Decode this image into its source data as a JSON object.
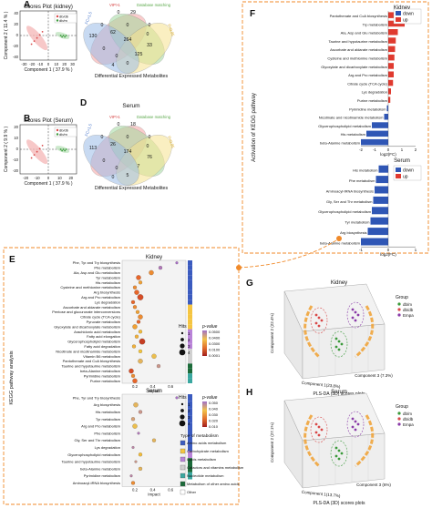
{
  "panels": {
    "A": {
      "letter": "A",
      "title": "Scores Plot (kidney)",
      "xlabel": "Component 1 ( 37.9 % )",
      "ylabel": "Component 2 ( 11.4 % )",
      "legend": [
        "db/db",
        "db/m"
      ],
      "xticks": [
        "-30",
        "-20",
        "-10",
        "0",
        "10",
        "20",
        "30"
      ],
      "yticks": [
        "40",
        "20",
        "0",
        "-20",
        "-40"
      ]
    },
    "B": {
      "letter": "B",
      "title": "Scores Plot (Serum)",
      "xlabel": "Component 1 ( 37.9 % )",
      "ylabel": "Component 2 ( 9.9 % )",
      "legend": [
        "db/db",
        "db/m"
      ],
      "xticks": [
        "-20",
        "-10",
        "0",
        "10",
        "20"
      ],
      "yticks": [
        "20",
        "10",
        "0",
        "-10",
        "-20"
      ]
    },
    "C": {
      "letter": "C",
      "title": "Kidney",
      "footer": "Differential Expressed Metabolites",
      "sets": [
        "VIP>1",
        "Database matching",
        "P<0.05",
        "FC>1.5"
      ],
      "counts": [
        "0",
        "29",
        "0",
        "130",
        "62",
        "0",
        "0",
        "264",
        "33",
        "125",
        "0",
        "0",
        "0",
        "4",
        "0"
      ]
    },
    "D": {
      "letter": "D",
      "title": "Serum",
      "footer": "Differential Expressed Metabolites",
      "sets": [
        "VIP>1",
        "Database matching",
        "P<0.05",
        "FC>1.5"
      ],
      "counts": [
        "0",
        "18",
        "0",
        "113",
        "26",
        "0",
        "0",
        "174",
        "76",
        "7",
        "0",
        "0",
        "5",
        "0",
        "0"
      ]
    },
    "E": {
      "letter": "E",
      "side_label": "KEGG pathway analysis",
      "kidney": {
        "title": "Kidney",
        "xlabel": "Impact",
        "xticks": [
          "0.2",
          "0.4",
          "0.6"
        ],
        "pathways": [
          "Phe, Tyr and Try biosynthesis",
          "Phe metabolism",
          "Ala, Asp and Glu metabolism",
          "Tyr metabolism",
          "His metabolism",
          "Cysteine and methionine metabolism",
          "Arg biosynthesis",
          "Arg and Pro metabolism",
          "Lys degradation",
          "Ascorbate and aldarate metabolism",
          "Pentose and glucuronate interconversions",
          "Citrate cycle (TCA cycle)",
          "Pyruvate metabolism",
          "Glyoxylate and dicarboxylate metabolism",
          "Arachidonic acid metabolism",
          "Fatty acid elongation",
          "Glycerophospholipid metabolism",
          "Fatty acid degradation",
          "Nicotinate and nicotinamide metabolism",
          "Vitamin B6 metabolism",
          "Pantothenate and CoA biosynthesis",
          "Taurine and hypotaurine metabolism",
          "beta-Alanine metabolism",
          "Pyrimidine metabolism",
          "Purine metabolism"
        ],
        "impact": [
          0.6,
          0.42,
          0.32,
          0.18,
          0.2,
          0.14,
          0.16,
          0.2,
          0.12,
          0.14,
          0.17,
          0.2,
          0.18,
          0.14,
          0.2,
          0.16,
          0.22,
          0.13,
          0.2,
          0.35,
          0.2,
          0.4,
          0.1,
          0.12,
          0.14
        ],
        "hits": [
          1,
          2,
          3,
          3,
          2,
          2,
          3,
          4,
          2,
          2,
          2,
          3,
          2,
          3,
          2,
          2,
          4,
          2,
          2,
          3,
          3,
          2,
          3,
          2,
          3
        ],
        "pval": [
          0.05,
          0.04,
          0.002,
          0.001,
          0.003,
          0.002,
          0.001,
          0.0005,
          0.001,
          0.002,
          0.003,
          0.002,
          0.001,
          0.003,
          0.005,
          0.004,
          0.0003,
          0.004,
          0.006,
          0.008,
          0.01,
          0.02,
          0.0005,
          0.002,
          0.001
        ]
      },
      "kidney_legend": {
        "hits_title": "Hits",
        "hits": [
          "1",
          "2",
          "3",
          "4"
        ],
        "p_title": "p-value",
        "p_ticks": [
          "0.0500",
          "0.0400",
          "0.0300",
          "0.0100",
          "0.0001"
        ]
      },
      "serum": {
        "title": "Serum",
        "xlabel": "Impact",
        "xticks": [
          "0.2",
          "0.4",
          "0.6"
        ],
        "pathways": [
          "Phe, Tyr and Try biosynthesis",
          "Arg biosynthesis",
          "His metabolism",
          "Tyr metabolism",
          "Arg and Pro metabolism",
          "Phe metabolism",
          "Gly, Ser and Thr metabolism",
          "Lys degradation",
          "Glycerophospholipid metabolism",
          "Taurine and hypotaurine metabolism",
          "beta-Alanine metabolism",
          "Pyrimidine metabolism",
          "Aminoacyl-tRNA biosynthesis"
        ],
        "impact": [
          0.6,
          0.15,
          0.2,
          0.12,
          0.14,
          0.18,
          0.35,
          0.12,
          0.2,
          0.15,
          0.2,
          0.1,
          0.12
        ],
        "hits": [
          1,
          3,
          2,
          2,
          3,
          1,
          2,
          1,
          2,
          1,
          2,
          1,
          2
        ],
        "pval": [
          0.05,
          0.01,
          0.02,
          0.015,
          0.008,
          0.04,
          0.01,
          0.03,
          0.005,
          0.02,
          0.01,
          0.03,
          0.002
        ]
      },
      "serum_legend": {
        "hits_title": "Hits",
        "hits": [
          "1",
          "2",
          "3",
          "4"
        ],
        "p_title": "p-value",
        "p_ticks": [
          "0.050",
          "0.040",
          "0.030",
          "0.020",
          "0.010"
        ]
      },
      "type_legend": {
        "title": "Type of metabolism",
        "items": [
          {
            "label": "Amino acids metabolism",
            "color": "#3b5bbf"
          },
          {
            "label": "Carbohydrate metabolism",
            "color": "#f5c542"
          },
          {
            "label": "Lipids metabolism",
            "color": "#b983d8"
          },
          {
            "label": "Cofactors and vitamins metabolism",
            "color": "#d0d0d0"
          },
          {
            "label": "Nucleotide metabolism",
            "color": "#3aa7a0"
          },
          {
            "label": "Metabolism of other amino acids",
            "color": "#1c6b3a"
          },
          {
            "label": "Other",
            "color": "#ffffff"
          }
        ]
      }
    },
    "F": {
      "letter": "F",
      "side_label": "Activation of KEGG pathway",
      "kidney": {
        "title": "Kidney",
        "xlabel": "log2(FC)",
        "xticks": [
          "-2",
          "-1",
          "0",
          "1",
          "2"
        ],
        "pathways": [
          "Pantothenate and CoA biosynthesis",
          "Trp metabolism",
          "Ala, Asp and Glu metabolism",
          "Taurine and hypotaurine metabolism",
          "Ascorbate and aldarate metabolism",
          "Cysteine and methionine metabolism",
          "Glyoxylate and dicarboxylate metabolism",
          "Arg and Pro metabolism",
          "Citrate cycle (TCA cycle)",
          "Lys degradation",
          "Purine metabolism",
          "Pyrimidine metabolism",
          "Nicotinate and nicotinamide metabolism",
          "Glycerophospholipid metabolism",
          "His metabolism",
          "beta-Alanine metabolism"
        ],
        "values": [
          2.0,
          1.2,
          0.7,
          0.55,
          0.5,
          0.45,
          0.4,
          0.4,
          0.35,
          0.2,
          0.15,
          -0.1,
          -0.3,
          -1.2,
          -1.6,
          -2.0
        ]
      },
      "serum": {
        "title": "Serum",
        "xlabel": "log2(FC)",
        "xticks": [
          "-1",
          "0",
          "1"
        ],
        "pathways": [
          "His metabolism",
          "Phe metabolism",
          "Aminoacyl-tRNA biosynthesis",
          "Gly, Ser and Thr metabolism",
          "Glycerophospholipid metabolism",
          "Tyr metabolism",
          "Arg biosynthesis",
          "beta-Alanine metabolism"
        ],
        "values": [
          -0.35,
          -0.45,
          -0.5,
          -0.55,
          -0.6,
          -0.65,
          -0.75,
          -1.0
        ]
      },
      "legend": [
        "down",
        "up"
      ]
    },
    "G": {
      "letter": "G",
      "title": "Kidney",
      "xlabel": "PLS-DA (3D) scores plots",
      "axes": [
        "Component 1(23.8%)",
        "Component 2 (22.4%)",
        "Component 3 (7.3%)"
      ],
      "legend_title": "Group",
      "legend": [
        "db/m",
        "db/db",
        "Empa"
      ]
    },
    "H": {
      "letter": "H",
      "title": "Serum",
      "xlabel": "PLS-DA (3D) scores plots",
      "axes": [
        "Component 1(13.7%)",
        "Component 2 (27.1%)",
        "Component 3 (6%)"
      ],
      "legend_title": "Group",
      "legend": [
        "db/m",
        "db/db",
        "Empa"
      ]
    }
  },
  "colors": {
    "dbdb": "#d94848",
    "dbm": "#3a9a3a",
    "empa": "#8a3aa8",
    "up": "#e03a2f",
    "down": "#2f56b5",
    "dash": "#f08a2a"
  }
}
